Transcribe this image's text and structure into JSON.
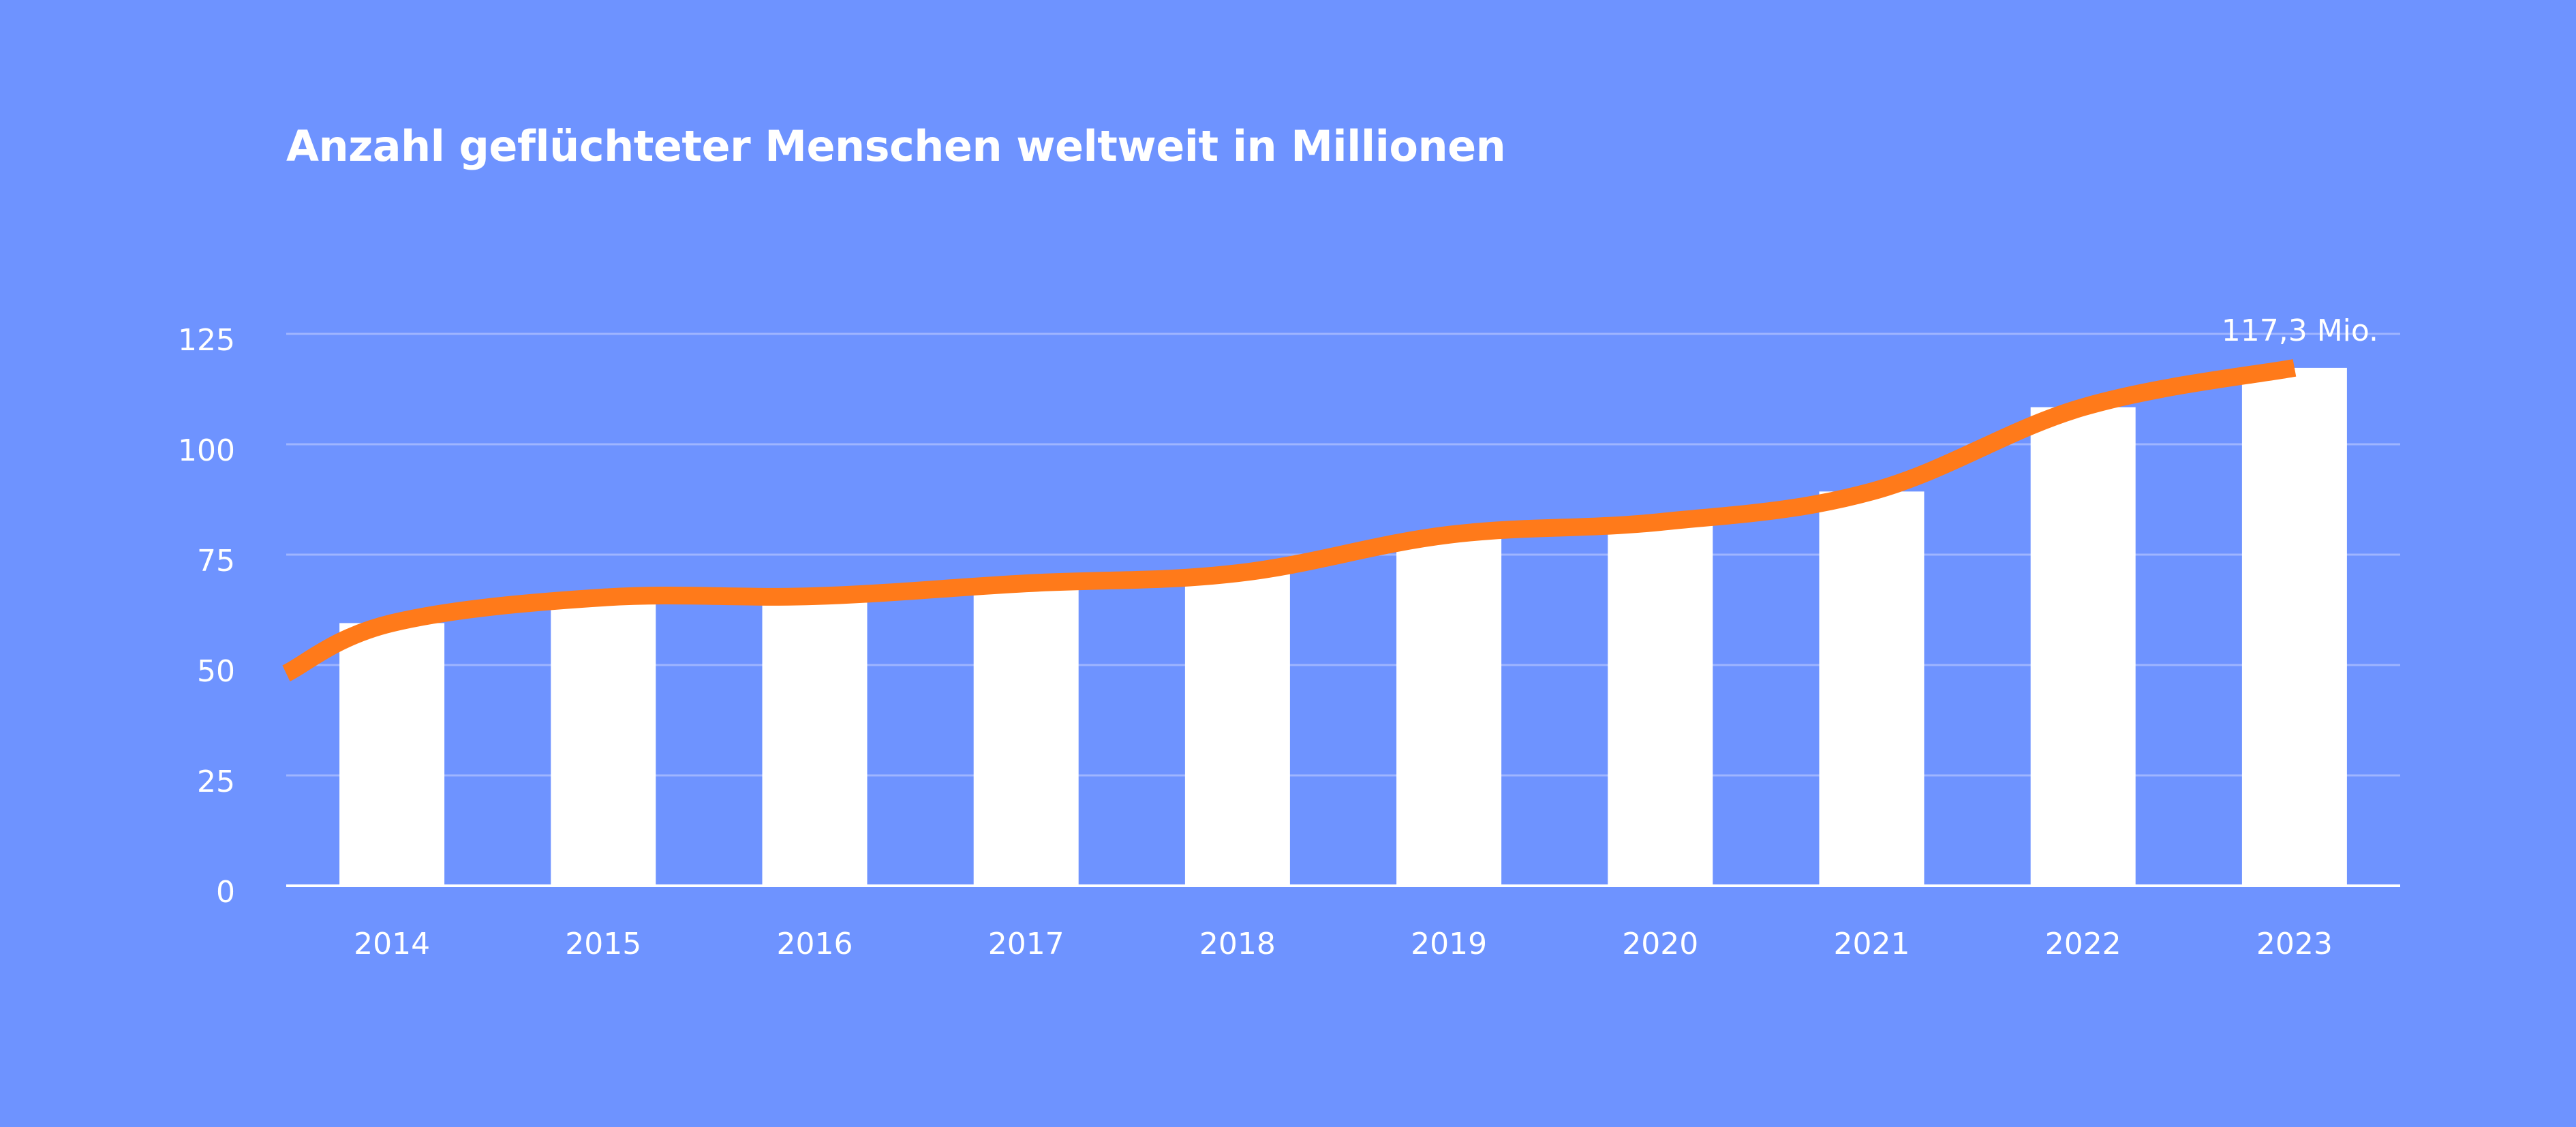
{
  "chart_data": {
    "type": "bar",
    "title": "Anzahl geflüchteter Menschen weltweit in Millionen",
    "xlabel": "",
    "ylabel": "",
    "categories": [
      "2014",
      "2015",
      "2016",
      "2017",
      "2018",
      "2019",
      "2020",
      "2021",
      "2022",
      "2023"
    ],
    "series": [
      {
        "type": "bar",
        "values": [
          59.5,
          65.3,
          65.6,
          68.5,
          70.8,
          79.5,
          82.4,
          89.3,
          108.4,
          117.3
        ],
        "color": "#ffffff"
      },
      {
        "type": "line",
        "values": [
          59.5,
          65.3,
          65.6,
          68.5,
          70.8,
          79.5,
          82.4,
          89.3,
          108.4,
          117.3
        ],
        "color": "#ff7a1a"
      }
    ],
    "yticks": [
      "0",
      "25",
      "50",
      "75",
      "100",
      "125"
    ],
    "ylim": [
      0,
      125
    ],
    "grid": true,
    "annotations": [
      {
        "category": "2023",
        "text": "117,3 Mio."
      }
    ],
    "colors": {
      "background": "#6e93ff",
      "bars": "#ffffff",
      "line": "#ff7a1a",
      "grid": "#9fb5ff",
      "axis": "#ffffff"
    }
  }
}
